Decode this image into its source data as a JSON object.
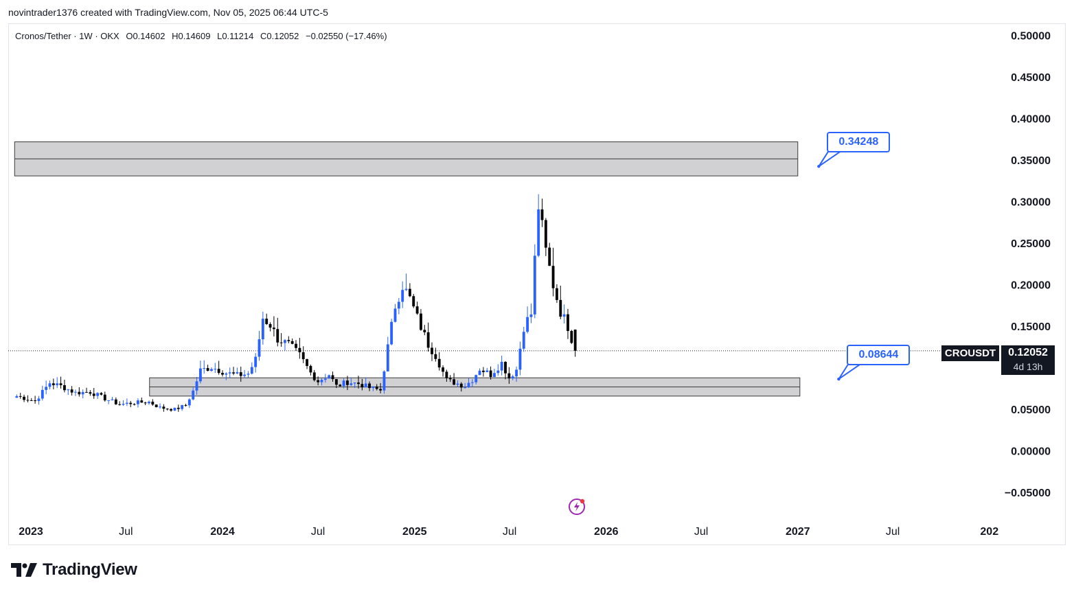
{
  "caption": "novintrader1376 created with TradingView.com, Nov 05, 2025 06:44 UTC-5",
  "legend": {
    "symbol": "Cronos/Tether · 1W · OKX",
    "open": "O0.14602",
    "high": "H0.14609",
    "low": "L0.11214",
    "close": "C0.12052",
    "change": "−0.02550 (−17.46%)"
  },
  "ticker_label": "CROUSDT",
  "last_price": "0.12052",
  "countdown": "4d 13h",
  "callouts": {
    "upper": "0.34248",
    "lower": "0.08644"
  },
  "brand": "TradingView",
  "colors": {
    "up": "#2962ff",
    "down": "#000000",
    "zone_fill": "#d1d1d4",
    "zone_border": "#3a3a3a",
    "label_bg": "#131722"
  },
  "chart_data": {
    "type": "candlestick",
    "interval": "1W",
    "ylim": [
      -0.065,
      0.525
    ],
    "y_ticks": [
      "0.50000",
      "0.45000",
      "0.40000",
      "0.35000",
      "0.30000",
      "0.25000",
      "0.20000",
      "0.15000",
      "0.10000",
      "0.05000",
      "0.00000",
      "−0.05000"
    ],
    "y_tick_values": [
      0.5,
      0.45,
      0.4,
      0.35,
      0.3,
      0.25,
      0.2,
      0.15,
      0.1,
      0.05,
      0.0,
      -0.05
    ],
    "x_ticks": [
      {
        "label": "2023",
        "bold": true,
        "x": "2023-01-01"
      },
      {
        "label": "Jul",
        "bold": false,
        "x": "2023-07-01"
      },
      {
        "label": "2024",
        "bold": true,
        "x": "2024-01-01"
      },
      {
        "label": "Jul",
        "bold": false,
        "x": "2024-07-01"
      },
      {
        "label": "2025",
        "bold": true,
        "x": "2025-01-01"
      },
      {
        "label": "Jul",
        "bold": false,
        "x": "2025-07-01"
      },
      {
        "label": "2026",
        "bold": true,
        "x": "2026-01-01"
      },
      {
        "label": "Jul",
        "bold": false,
        "x": "2026-07-01"
      },
      {
        "label": "2027",
        "bold": true,
        "x": "2027-01-01"
      },
      {
        "label": "Jul",
        "bold": false,
        "x": "2027-07-01"
      },
      {
        "label": "202",
        "bold": true,
        "x": "2028-01-01"
      }
    ],
    "zones": [
      {
        "top": 0.372,
        "bottom": 0.331,
        "mid": 0.3515,
        "from": "2022-12-01",
        "to": "2027-01-01"
      },
      {
        "top": 0.088,
        "bottom": 0.066,
        "mid": 0.077,
        "from": "2023-08-15",
        "to": "2027-01-05"
      }
    ],
    "last_price_line": 0.12052,
    "callout_targets": {
      "upper": {
        "value": 0.34248,
        "date": "2027-02-10"
      },
      "lower": {
        "value": 0.08644,
        "date": "2027-03-20"
      }
    },
    "anchors": [
      [
        "2022-12-05",
        0.066
      ],
      [
        "2023-01-09",
        0.06
      ],
      [
        "2023-02-06",
        0.082
      ],
      [
        "2023-02-27",
        0.078
      ],
      [
        "2023-03-27",
        0.07
      ],
      [
        "2023-04-24",
        0.071
      ],
      [
        "2023-05-22",
        0.063
      ],
      [
        "2023-06-19",
        0.056
      ],
      [
        "2023-07-17",
        0.058
      ],
      [
        "2023-08-14",
        0.059
      ],
      [
        "2023-09-04",
        0.052
      ],
      [
        "2023-10-02",
        0.05
      ],
      [
        "2023-10-23",
        0.055
      ],
      [
        "2023-11-06",
        0.072
      ],
      [
        "2023-11-20",
        0.097
      ],
      [
        "2023-12-11",
        0.101
      ],
      [
        "2024-01-08",
        0.094
      ],
      [
        "2024-01-29",
        0.091
      ],
      [
        "2024-02-19",
        0.093
      ],
      [
        "2024-03-04",
        0.11
      ],
      [
        "2024-03-18",
        0.16
      ],
      [
        "2024-04-01",
        0.152
      ],
      [
        "2024-04-15",
        0.135
      ],
      [
        "2024-05-06",
        0.128
      ],
      [
        "2024-05-27",
        0.115
      ],
      [
        "2024-06-17",
        0.094
      ],
      [
        "2024-07-01",
        0.084
      ],
      [
        "2024-07-22",
        0.092
      ],
      [
        "2024-08-05",
        0.078
      ],
      [
        "2024-08-26",
        0.083
      ],
      [
        "2024-09-16",
        0.081
      ],
      [
        "2024-10-07",
        0.076
      ],
      [
        "2024-10-28",
        0.073
      ],
      [
        "2024-11-11",
        0.125
      ],
      [
        "2024-11-25",
        0.175
      ],
      [
        "2024-12-09",
        0.2
      ],
      [
        "2024-12-23",
        0.183
      ],
      [
        "2025-01-06",
        0.16
      ],
      [
        "2025-01-27",
        0.128
      ],
      [
        "2025-02-10",
        0.115
      ],
      [
        "2025-03-03",
        0.085
      ],
      [
        "2025-03-24",
        0.081
      ],
      [
        "2025-04-07",
        0.078
      ],
      [
        "2025-04-21",
        0.086
      ],
      [
        "2025-05-05",
        0.099
      ],
      [
        "2025-05-26",
        0.092
      ],
      [
        "2025-06-16",
        0.106
      ],
      [
        "2025-06-30",
        0.088
      ],
      [
        "2025-07-14",
        0.098
      ],
      [
        "2025-07-28",
        0.15
      ],
      [
        "2025-08-11",
        0.165
      ],
      [
        "2025-08-25",
        0.295
      ],
      [
        "2025-09-08",
        0.24
      ],
      [
        "2025-09-22",
        0.2
      ],
      [
        "2025-10-06",
        0.168
      ],
      [
        "2025-10-20",
        0.15
      ],
      [
        "2025-11-03",
        0.12052
      ]
    ]
  }
}
